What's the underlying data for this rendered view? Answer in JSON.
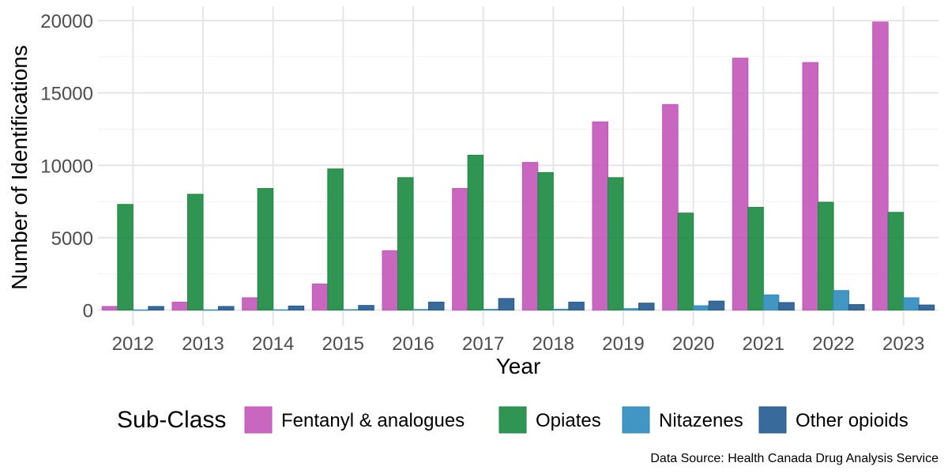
{
  "chart_data": {
    "type": "bar",
    "xlabel": "Year",
    "ylabel": "Number of Identifications",
    "ylim": [
      0,
      20000
    ],
    "yticks": [
      0,
      5000,
      10000,
      15000,
      20000
    ],
    "grid": true,
    "legend_title": "Sub-Class",
    "legend_position": "bottom",
    "caption": "Data Source: Health Canada Drug Analysis Service",
    "categories": [
      "2012",
      "2013",
      "2014",
      "2015",
      "2016",
      "2017",
      "2018",
      "2019",
      "2020",
      "2021",
      "2022",
      "2023"
    ],
    "series": [
      {
        "name": "Fentanyl & analogues",
        "color": "#C355B8",
        "values": [
          250,
          550,
          850,
          1800,
          4100,
          8400,
          10200,
          13000,
          14200,
          17400,
          17100,
          19900
        ]
      },
      {
        "name": "Opiates",
        "color": "#1A8A40",
        "values": [
          7300,
          8000,
          8400,
          9750,
          9150,
          10700,
          9500,
          9150,
          6700,
          7100,
          7450,
          6750
        ]
      },
      {
        "name": "Nitazenes",
        "color": "#2E8BBD",
        "values": [
          10,
          15,
          20,
          30,
          40,
          50,
          60,
          100,
          300,
          1050,
          1350,
          850
        ]
      },
      {
        "name": "Other opioids",
        "color": "#225A91",
        "values": [
          250,
          250,
          280,
          320,
          550,
          800,
          550,
          480,
          620,
          520,
          380,
          350
        ]
      }
    ]
  }
}
